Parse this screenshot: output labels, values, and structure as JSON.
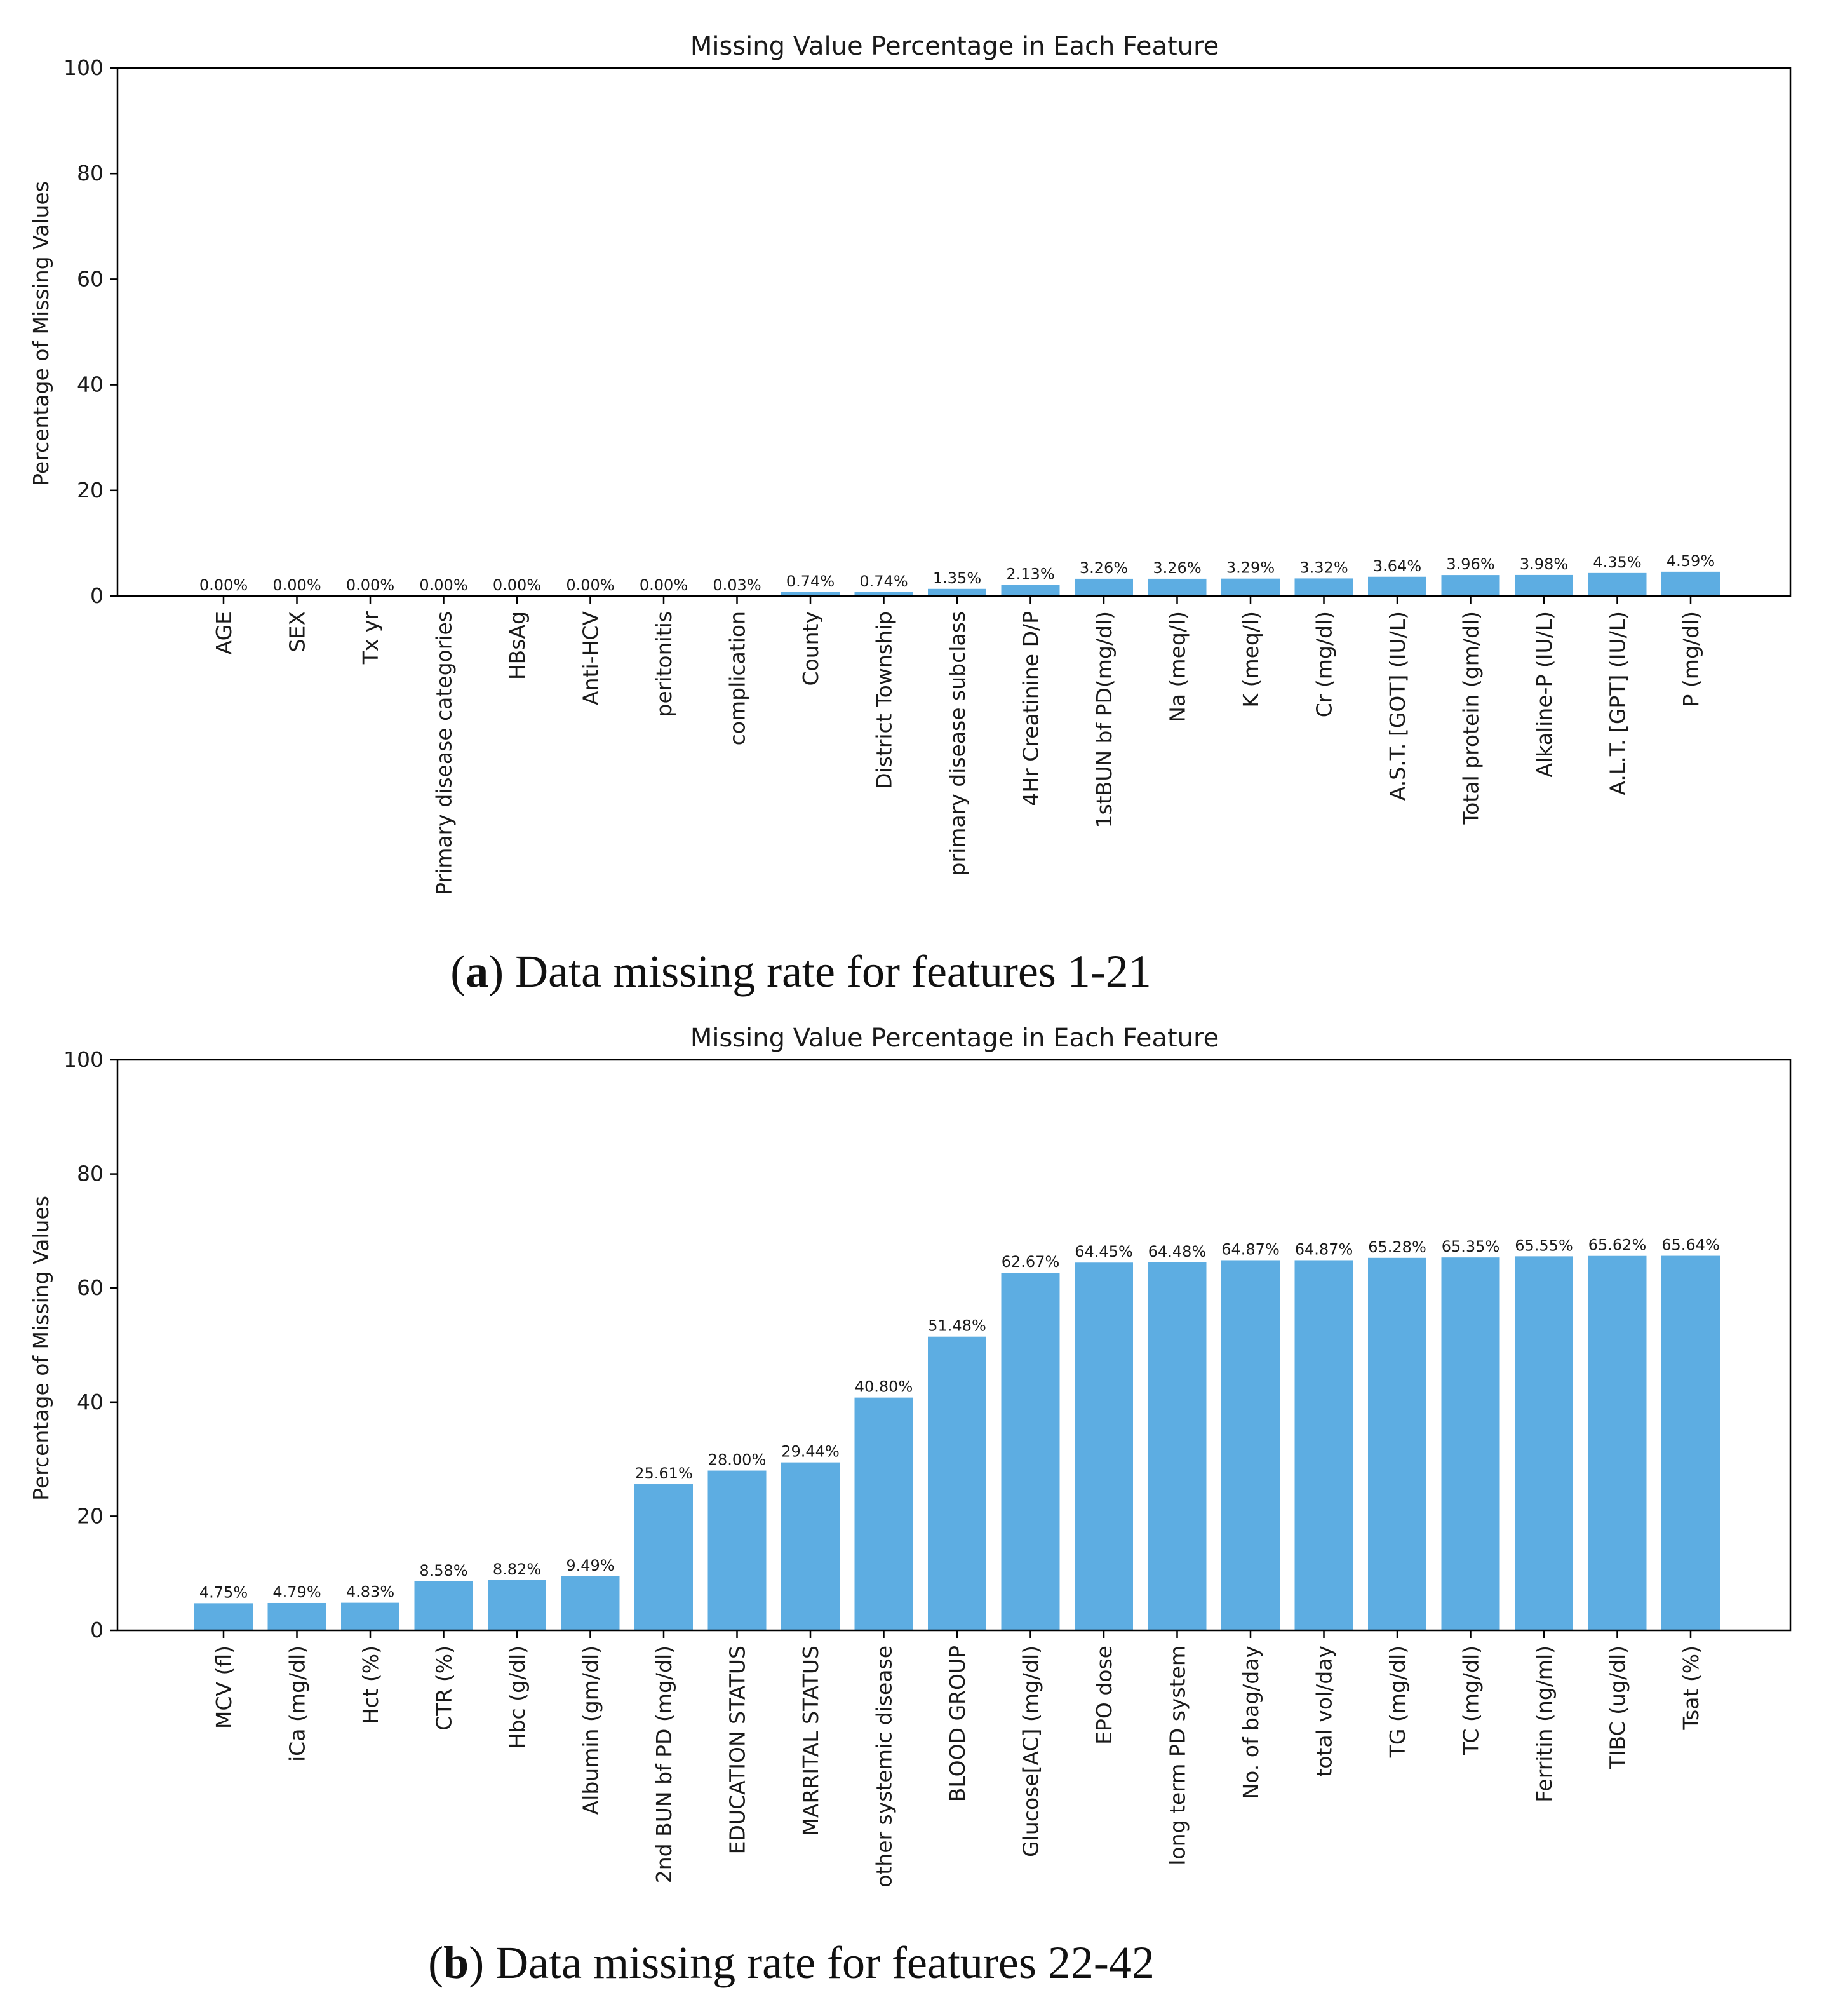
{
  "colors": {
    "bar": "#5dade2",
    "axis": "#000000",
    "text": "#1a1a1a"
  },
  "chart_data": [
    {
      "type": "bar",
      "title": "Missing Value Percentage in Each Feature",
      "xlabel": "",
      "ylabel": "Percentage of Missing Values",
      "ylim": [
        0,
        100
      ],
      "yticks": [
        "0",
        "20",
        "40",
        "60",
        "80",
        "100"
      ],
      "grid": false,
      "categories": [
        "AGE",
        "SEX",
        "Tx yr",
        "Primary disease categories",
        "HBsAg",
        "Anti-HCV",
        "peritonitis",
        "complication",
        "County",
        "District Township",
        "primary disease subclass",
        "4Hr Creatinine D/P",
        "1stBUN bf PD(mg/dl)",
        "Na (meq/l)",
        "K (meq/l)",
        "Cr (mg/dl)",
        "A.S.T. [GOT] (IU/L)",
        "Total protein (gm/dl)",
        "Alkaline-P (IU/L)",
        "A.L.T. [GPT] (IU/L)",
        "P (mg/dl)"
      ],
      "values": [
        0.0,
        0.0,
        0.0,
        0.0,
        0.0,
        0.0,
        0.0,
        0.03,
        0.74,
        0.74,
        1.35,
        2.13,
        3.26,
        3.26,
        3.29,
        3.32,
        3.64,
        3.96,
        3.98,
        4.35,
        4.59
      ],
      "data_labels": [
        "0.00%",
        "0.00%",
        "0.00%",
        "0.00%",
        "0.00%",
        "0.00%",
        "0.00%",
        "0.03%",
        "0.74%",
        "0.74%",
        "1.35%",
        "2.13%",
        "3.26%",
        "3.26%",
        "3.29%",
        "3.32%",
        "3.64%",
        "3.96%",
        "3.98%",
        "4.35%",
        "4.59%"
      ],
      "caption": {
        "prefix": "(",
        "letter": "a",
        "suffix": ") Data missing rate for features 1-21"
      }
    },
    {
      "type": "bar",
      "title": "Missing Value Percentage in Each Feature",
      "xlabel": "",
      "ylabel": "Percentage of Missing Values",
      "ylim": [
        0,
        100
      ],
      "yticks": [
        "0",
        "20",
        "40",
        "60",
        "80",
        "100"
      ],
      "grid": false,
      "categories": [
        "MCV (fl)",
        "iCa (mg/dl)",
        "Hct (%)",
        "CTR (%)",
        "Hbc (g/dl)",
        "Albumin (gm/dl)",
        "2nd BUN bf PD (mg/dl)",
        "EDUCATION STATUS",
        "MARRITAL STATUS",
        "other systemic disease",
        "BLOOD GROUP",
        "Glucose[AC] (mg/dl)",
        "EPO dose",
        "long term PD system",
        "No. of bag/day",
        "total vol/day",
        "TG (mg/dl)",
        "TC (mg/dl)",
        "Ferritin (ng/ml)",
        "TIBC (ug/dl)",
        "Tsat (%)"
      ],
      "values": [
        4.75,
        4.79,
        4.83,
        8.58,
        8.82,
        9.49,
        25.61,
        28.0,
        29.44,
        40.8,
        51.48,
        62.67,
        64.45,
        64.48,
        64.87,
        64.87,
        65.28,
        65.35,
        65.55,
        65.62,
        65.64
      ],
      "data_labels": [
        "4.75%",
        "4.79%",
        "4.83%",
        "8.58%",
        "8.82%",
        "9.49%",
        "25.61%",
        "28.00%",
        "29.44%",
        "40.80%",
        "51.48%",
        "62.67%",
        "64.45%",
        "64.48%",
        "64.87%",
        "64.87%",
        "65.28%",
        "65.35%",
        "65.55%",
        "65.62%",
        "65.64%"
      ],
      "caption": {
        "prefix": "(",
        "letter": "b",
        "suffix": ") Data missing rate for features 22-42"
      }
    }
  ]
}
